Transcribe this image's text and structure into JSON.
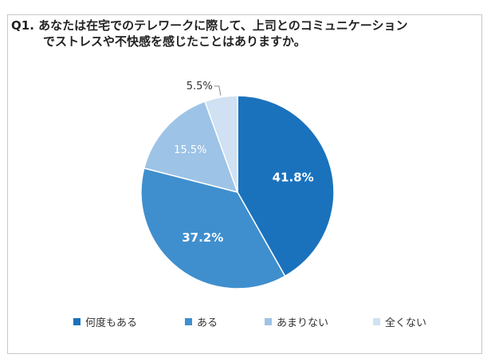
{
  "chart_data": {
    "type": "pie",
    "title_line1": "Q1. あなたは在宅でのテレワークに際して、上司とのコミュニケーション",
    "title_line2": "でストレスや不快感を感じたことはありますか。",
    "categories": [
      "何度もある",
      "ある",
      "あまりない",
      "全くない"
    ],
    "values": [
      41.8,
      37.2,
      15.5,
      5.5
    ],
    "labels": [
      "41.8%",
      "37.2%",
      "15.5%",
      "5.5%"
    ],
    "colors": [
      "#1a72bd",
      "#3f8fce",
      "#9dc3e6",
      "#cfe1f2"
    ],
    "label_colors": [
      "#ffffff",
      "#ffffff",
      "#ffffff",
      "#333333"
    ],
    "start_angle_deg": 0,
    "direction": "clockwise",
    "legend_position": "bottom"
  }
}
